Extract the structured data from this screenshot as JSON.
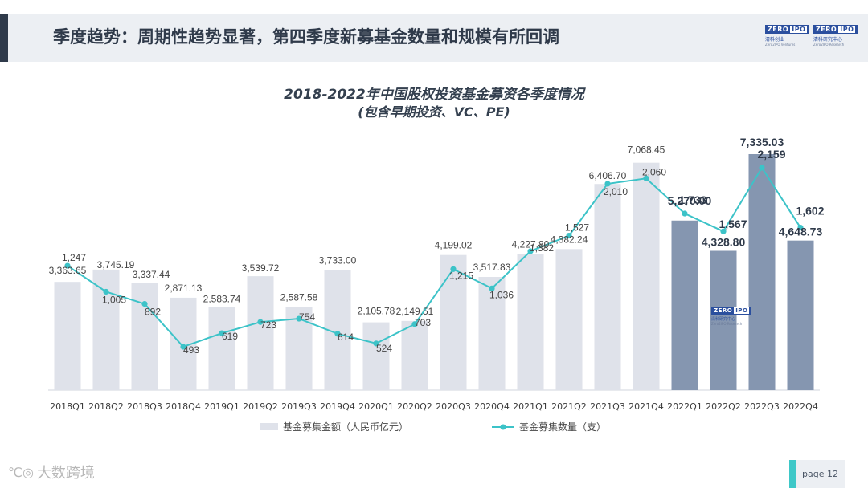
{
  "page": {
    "title": "季度趋势：周期性趋势显著，第四季度新募基金数量和规模有所回调",
    "number_label": "page  12"
  },
  "logos": {
    "left": {
      "mark_a": "ZERO",
      "mark_b": "IPO",
      "sub": "清科创业",
      "en": "Zero2IPO Ventures"
    },
    "right": {
      "mark_a": "ZERO",
      "mark_b": "IPO",
      "sub": "清科研究中心",
      "en": "Zero2IPO Research"
    }
  },
  "watermark": {
    "mark_a": "ZERO",
    "mark_b": "IPO",
    "sub": "清科研究中心",
    "en": "Zero2IPO Research"
  },
  "footer": {
    "brand_icon": "℃◎",
    "brand": "大数跨境"
  },
  "chart_data": {
    "type": "bar",
    "title": "2018-2022年中国股权投资基金募资各季度情况",
    "subtitle": "(包含早期投资、VC、PE)",
    "categories": [
      "2018Q1",
      "2018Q2",
      "2018Q3",
      "2018Q4",
      "2019Q1",
      "2019Q2",
      "2019Q3",
      "2019Q4",
      "2020Q1",
      "2020Q2",
      "2020Q3",
      "2020Q4",
      "2021Q1",
      "2021Q2",
      "2021Q3",
      "2021Q4",
      "2022Q1",
      "2022Q2",
      "2022Q3",
      "2022Q4"
    ],
    "series": [
      {
        "name": "基金募集金额（人民币亿元）",
        "type": "bar",
        "values": [
          3363.65,
          3745.19,
          3337.44,
          2871.13,
          2583.74,
          3539.72,
          2587.58,
          3733.0,
          2105.78,
          2149.51,
          4199.02,
          3517.83,
          4227.8,
          4382.24,
          6406.7,
          7068.45,
          5270.0,
          4328.8,
          7335.03,
          4648.73
        ],
        "labels": [
          "3,363.65",
          "3,745.19",
          "3,337.44",
          "2,871.13",
          "2,583.74",
          "3,539.72",
          "2,587.58",
          "3,733.00",
          "2,105.78",
          "2,149.51",
          "4,199.02",
          "3,517.83",
          "4,227.80",
          "4,382.24",
          "6,406.70",
          "7,068.45",
          "5,270.00",
          "4,328.80",
          "7,335.03",
          "4,648.73"
        ],
        "color": "#dfe2ea",
        "highlight_color": "#8596b0"
      },
      {
        "name": "基金募集数量（支）",
        "type": "line",
        "values": [
          1247,
          1005,
          892,
          493,
          619,
          723,
          754,
          614,
          524,
          703,
          1215,
          1036,
          1382,
          1527,
          2010,
          2060,
          1733,
          1567,
          2159,
          1602
        ],
        "labels": [
          "1,247",
          "1,005",
          "892",
          "493",
          "619",
          "723",
          "754",
          "614",
          "524",
          "703",
          "1,215",
          "1,036",
          "1,382",
          "1,527",
          "2,010",
          "2,060",
          "1,733",
          "1,567",
          "2,159",
          "1,602"
        ],
        "color": "#3cc3c8"
      }
    ],
    "highlight_from_index": 16,
    "ylim_bar": [
      0,
      8500
    ],
    "ylim_line": [
      -1600,
      2400
    ],
    "legend_position": "bottom-center",
    "grid": false
  }
}
